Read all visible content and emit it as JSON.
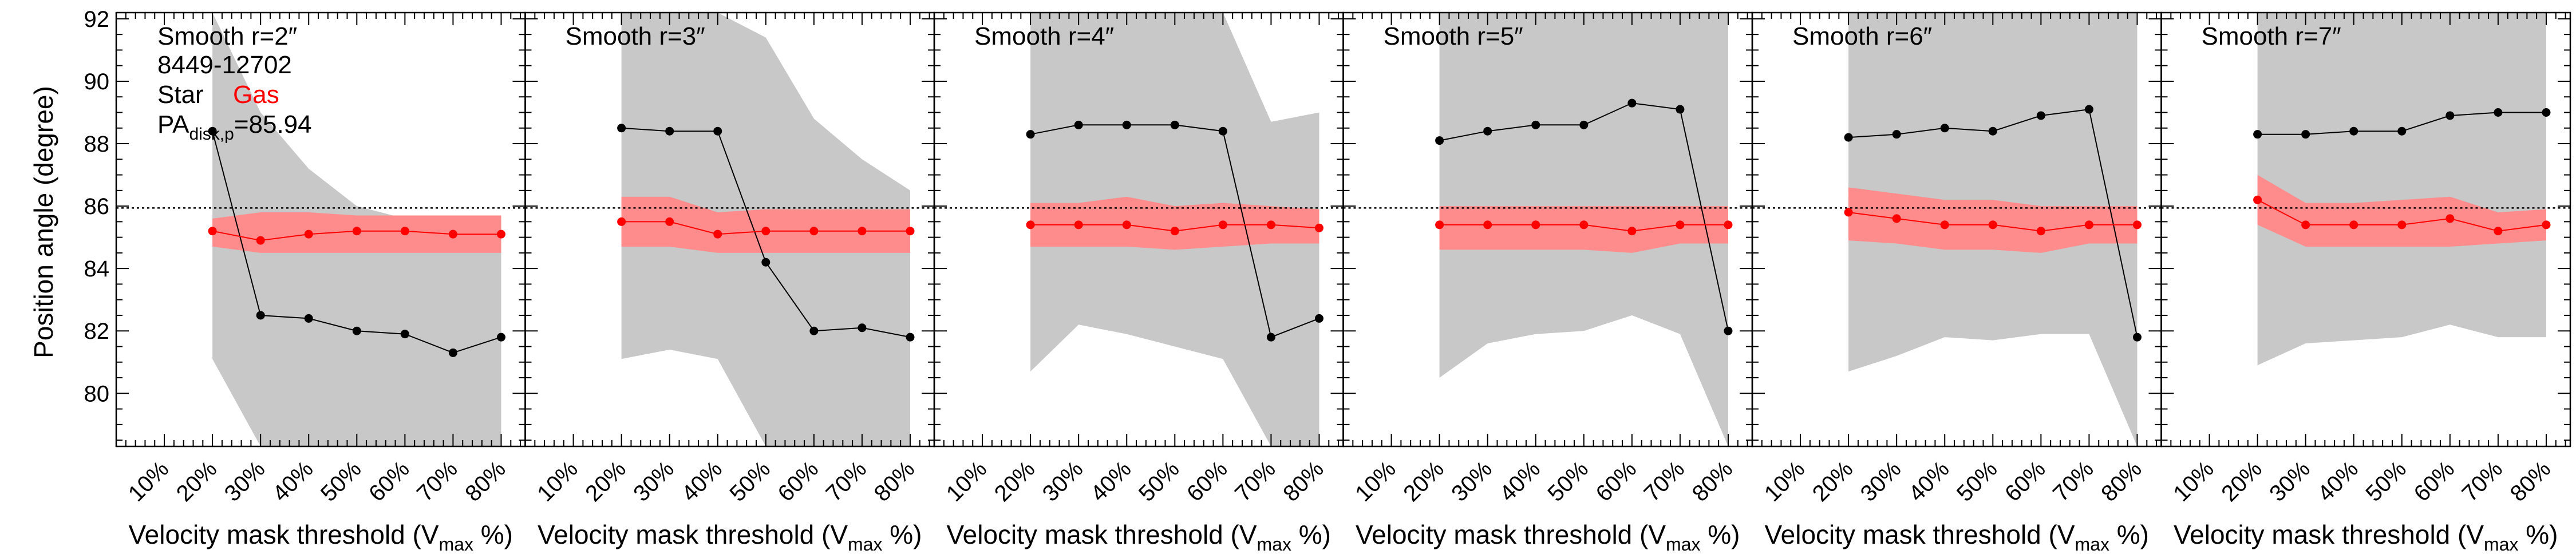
{
  "figure": {
    "ylabel": "Position angle (degree)",
    "xlabel_main": "Velocity mask threshold (V",
    "xlabel_sub": "max",
    "xlabel_tail": " %)",
    "annotation": {
      "galaxy_id": "8449-12702",
      "star_label": "Star",
      "gas_label": "Gas",
      "pa_prefix": "PA",
      "pa_sub": "disk,p",
      "pa_value": "=85.94"
    },
    "colors": {
      "star": "#000000",
      "gas": "#ff0000",
      "star_band": "#c8c8c8",
      "gas_band": "#ff8c8c"
    }
  },
  "chart_data": {
    "type": "line",
    "x_tick_labels": [
      "10%",
      "20%",
      "30%",
      "40%",
      "50%",
      "60%",
      "70%",
      "80%"
    ],
    "x_tick_values": [
      10,
      20,
      30,
      40,
      50,
      60,
      70,
      80
    ],
    "xlim": [
      0,
      85
    ],
    "ylim": [
      78.3,
      92.2
    ],
    "y_ticks": [
      80,
      82,
      84,
      86,
      88,
      90,
      92
    ],
    "reference_line": 85.94,
    "panels": [
      {
        "title": "Smooth r=2″",
        "x": [
          20,
          30,
          40,
          50,
          60,
          70,
          80
        ],
        "star": [
          88.4,
          82.5,
          82.4,
          82.0,
          81.9,
          81.3,
          81.8
        ],
        "star_band_upper": [
          92.2,
          89.0,
          87.2,
          86.0,
          85.6,
          85.5,
          85.4
        ],
        "star_band_lower": [
          81.1,
          78.3,
          78.3,
          78.3,
          78.3,
          78.3,
          78.3
        ],
        "gas": [
          85.2,
          84.9,
          85.1,
          85.2,
          85.2,
          85.1,
          85.1
        ],
        "gas_band_upper": [
          85.6,
          85.8,
          85.8,
          85.7,
          85.7,
          85.7,
          85.7
        ],
        "gas_band_lower": [
          84.7,
          84.5,
          84.5,
          84.5,
          84.5,
          84.5,
          84.5
        ]
      },
      {
        "title": "Smooth r=3″",
        "x": [
          20,
          30,
          40,
          50,
          60,
          70,
          80
        ],
        "star": [
          88.5,
          88.4,
          88.4,
          84.2,
          82.0,
          82.1,
          81.8
        ],
        "star_band_upper": [
          92.2,
          92.2,
          92.2,
          91.4,
          88.8,
          87.5,
          86.5
        ],
        "star_band_lower": [
          81.1,
          81.4,
          81.1,
          78.3,
          78.3,
          78.3,
          78.3
        ],
        "gas": [
          85.5,
          85.5,
          85.1,
          85.2,
          85.2,
          85.2,
          85.2
        ],
        "gas_band_upper": [
          86.3,
          86.3,
          85.8,
          85.9,
          85.9,
          85.9,
          85.9
        ],
        "gas_band_lower": [
          84.7,
          84.7,
          84.5,
          84.5,
          84.5,
          84.5,
          84.5
        ]
      },
      {
        "title": "Smooth r=4″",
        "x": [
          20,
          30,
          40,
          50,
          60,
          70,
          80
        ],
        "star": [
          88.3,
          88.6,
          88.6,
          88.6,
          88.4,
          81.8,
          82.4
        ],
        "star_band_upper": [
          92.2,
          92.2,
          92.2,
          92.2,
          92.2,
          88.7,
          89.0
        ],
        "star_band_lower": [
          80.7,
          82.2,
          81.9,
          81.5,
          81.1,
          78.3,
          78.3
        ],
        "gas": [
          85.4,
          85.4,
          85.4,
          85.2,
          85.4,
          85.4,
          85.3
        ],
        "gas_band_upper": [
          86.1,
          86.1,
          86.3,
          86.0,
          86.1,
          86.0,
          85.9
        ],
        "gas_band_lower": [
          84.7,
          84.7,
          84.7,
          84.6,
          84.7,
          84.8,
          84.8
        ]
      },
      {
        "title": "Smooth r=5″",
        "x": [
          20,
          30,
          40,
          50,
          60,
          70,
          80
        ],
        "star": [
          88.1,
          88.4,
          88.6,
          88.6,
          89.3,
          89.1,
          82.0
        ],
        "star_band_upper": [
          92.2,
          92.2,
          92.2,
          92.2,
          92.2,
          92.2,
          92.2
        ],
        "star_band_lower": [
          80.5,
          81.6,
          81.9,
          82.0,
          82.5,
          81.9,
          78.3
        ],
        "gas": [
          85.4,
          85.4,
          85.4,
          85.4,
          85.2,
          85.4,
          85.4
        ],
        "gas_band_upper": [
          86.0,
          86.0,
          86.0,
          86.0,
          86.0,
          86.0,
          86.0
        ],
        "gas_band_lower": [
          84.6,
          84.6,
          84.6,
          84.6,
          84.5,
          84.8,
          84.8
        ]
      },
      {
        "title": "Smooth r=6″",
        "x": [
          20,
          30,
          40,
          50,
          60,
          70,
          80
        ],
        "star": [
          88.2,
          88.3,
          88.5,
          88.4,
          88.9,
          89.1,
          81.8
        ],
        "star_band_upper": [
          92.2,
          92.2,
          92.2,
          92.2,
          92.2,
          92.2,
          92.2
        ],
        "star_band_lower": [
          80.7,
          81.2,
          81.8,
          81.7,
          81.9,
          81.9,
          78.3
        ],
        "gas": [
          85.8,
          85.6,
          85.4,
          85.4,
          85.2,
          85.4,
          85.4
        ],
        "gas_band_upper": [
          86.6,
          86.4,
          86.2,
          86.2,
          86.0,
          86.0,
          86.0
        ],
        "gas_band_lower": [
          84.9,
          84.8,
          84.6,
          84.6,
          84.5,
          84.8,
          84.8
        ]
      },
      {
        "title": "Smooth r=7″",
        "x": [
          20,
          30,
          40,
          50,
          60,
          70,
          80
        ],
        "star": [
          88.3,
          88.3,
          88.4,
          88.4,
          88.9,
          89.0,
          89.0
        ],
        "star_band_upper": [
          92.2,
          92.2,
          92.2,
          92.2,
          92.2,
          92.2,
          92.2
        ],
        "star_band_lower": [
          80.9,
          81.6,
          81.7,
          81.8,
          82.2,
          81.8,
          81.8
        ],
        "gas": [
          86.2,
          85.4,
          85.4,
          85.4,
          85.6,
          85.2,
          85.4
        ],
        "gas_band_upper": [
          87.0,
          86.1,
          86.1,
          86.2,
          86.3,
          85.8,
          85.9
        ],
        "gas_band_lower": [
          85.4,
          84.7,
          84.7,
          84.7,
          84.7,
          84.8,
          84.9
        ]
      }
    ]
  }
}
